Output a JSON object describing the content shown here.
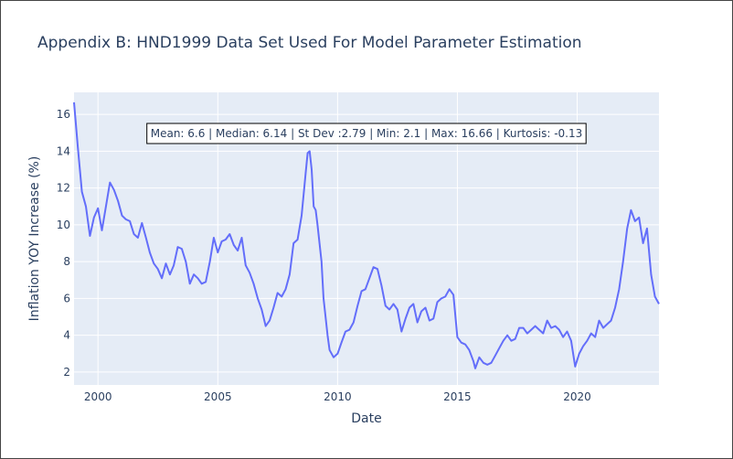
{
  "chart_data": {
    "type": "line",
    "title": "Appendix B: HND1999 Data Set Used For Model Parameter Estimation",
    "xlabel": "Date",
    "ylabel": "Inflation YOY Increase (%)",
    "xlim": [
      "1999-01-01",
      "2023-06-01"
    ],
    "ylim": [
      1.3,
      17.2
    ],
    "grid": true,
    "x_ticks": [
      {
        "value": "2000-01-01",
        "label": "2000"
      },
      {
        "value": "2005-01-01",
        "label": "2005"
      },
      {
        "value": "2010-01-01",
        "label": "2010"
      },
      {
        "value": "2015-01-01",
        "label": "2015"
      },
      {
        "value": "2020-01-01",
        "label": "2020"
      }
    ],
    "y_ticks": [
      {
        "value": 2,
        "label": "2"
      },
      {
        "value": 4,
        "label": "4"
      },
      {
        "value": 6,
        "label": "6"
      },
      {
        "value": 8,
        "label": "8"
      },
      {
        "value": 10,
        "label": "10"
      },
      {
        "value": 12,
        "label": "12"
      },
      {
        "value": 14,
        "label": "14"
      },
      {
        "value": 16,
        "label": "16"
      }
    ],
    "annotation": "Mean: 6.6 | Median: 6.14 | St Dev :2.79 | Min: 2.1 | Max: 16.66 | Kurtosis: -0.13",
    "series": [
      {
        "color": "#636efa",
        "points": [
          [
            "1999-01-01",
            16.66
          ],
          [
            "1999-03-01",
            14.2
          ],
          [
            "1999-05-01",
            11.8
          ],
          [
            "1999-07-01",
            11.0
          ],
          [
            "1999-09-01",
            9.4
          ],
          [
            "1999-11-01",
            10.4
          ],
          [
            "2000-01-01",
            10.9
          ],
          [
            "2000-03-01",
            9.7
          ],
          [
            "2000-05-01",
            11.0
          ],
          [
            "2000-07-01",
            12.3
          ],
          [
            "2000-09-01",
            11.9
          ],
          [
            "2000-11-01",
            11.3
          ],
          [
            "2001-01-01",
            10.5
          ],
          [
            "2001-03-01",
            10.3
          ],
          [
            "2001-05-01",
            10.2
          ],
          [
            "2001-07-01",
            9.5
          ],
          [
            "2001-09-01",
            9.3
          ],
          [
            "2001-11-01",
            10.1
          ],
          [
            "2002-01-01",
            9.3
          ],
          [
            "2002-03-01",
            8.5
          ],
          [
            "2002-05-01",
            7.9
          ],
          [
            "2002-07-01",
            7.6
          ],
          [
            "2002-09-01",
            7.1
          ],
          [
            "2002-11-01",
            7.9
          ],
          [
            "2003-01-01",
            7.3
          ],
          [
            "2003-03-01",
            7.8
          ],
          [
            "2003-05-01",
            8.8
          ],
          [
            "2003-07-01",
            8.7
          ],
          [
            "2003-09-01",
            8.0
          ],
          [
            "2003-11-01",
            6.8
          ],
          [
            "2004-01-01",
            7.3
          ],
          [
            "2004-03-01",
            7.1
          ],
          [
            "2004-05-01",
            6.8
          ],
          [
            "2004-07-01",
            6.9
          ],
          [
            "2004-09-01",
            8.0
          ],
          [
            "2004-11-01",
            9.3
          ],
          [
            "2005-01-01",
            8.5
          ],
          [
            "2005-03-01",
            9.1
          ],
          [
            "2005-05-01",
            9.2
          ],
          [
            "2005-07-01",
            9.5
          ],
          [
            "2005-09-01",
            8.9
          ],
          [
            "2005-11-01",
            8.6
          ],
          [
            "2006-01-01",
            9.3
          ],
          [
            "2006-03-01",
            7.8
          ],
          [
            "2006-05-01",
            7.4
          ],
          [
            "2006-07-01",
            6.8
          ],
          [
            "2006-09-01",
            6.0
          ],
          [
            "2006-11-01",
            5.4
          ],
          [
            "2007-01-01",
            4.5
          ],
          [
            "2007-03-01",
            4.8
          ],
          [
            "2007-05-01",
            5.5
          ],
          [
            "2007-07-01",
            6.3
          ],
          [
            "2007-09-01",
            6.1
          ],
          [
            "2007-11-01",
            6.5
          ],
          [
            "2008-01-01",
            7.3
          ],
          [
            "2008-03-01",
            9.0
          ],
          [
            "2008-05-01",
            9.2
          ],
          [
            "2008-07-01",
            10.5
          ],
          [
            "2008-09-01",
            12.8
          ],
          [
            "2008-10-01",
            13.9
          ],
          [
            "2008-11-01",
            14.0
          ],
          [
            "2008-12-01",
            13.0
          ],
          [
            "2009-01-01",
            11.0
          ],
          [
            "2009-02-01",
            10.8
          ],
          [
            "2009-03-01",
            10.0
          ],
          [
            "2009-05-01",
            8.0
          ],
          [
            "2009-06-01",
            6.0
          ],
          [
            "2009-08-01",
            4.0
          ],
          [
            "2009-09-01",
            3.2
          ],
          [
            "2009-11-01",
            2.8
          ],
          [
            "2010-01-01",
            3.0
          ],
          [
            "2010-03-01",
            3.6
          ],
          [
            "2010-05-01",
            4.2
          ],
          [
            "2010-07-01",
            4.3
          ],
          [
            "2010-09-01",
            4.7
          ],
          [
            "2010-11-01",
            5.6
          ],
          [
            "2011-01-01",
            6.4
          ],
          [
            "2011-03-01",
            6.5
          ],
          [
            "2011-05-01",
            7.1
          ],
          [
            "2011-07-01",
            7.7
          ],
          [
            "2011-09-01",
            7.6
          ],
          [
            "2011-11-01",
            6.7
          ],
          [
            "2012-01-01",
            5.6
          ],
          [
            "2012-03-01",
            5.4
          ],
          [
            "2012-05-01",
            5.7
          ],
          [
            "2012-07-01",
            5.4
          ],
          [
            "2012-09-01",
            4.2
          ],
          [
            "2012-11-01",
            4.9
          ],
          [
            "2013-01-01",
            5.5
          ],
          [
            "2013-03-01",
            5.7
          ],
          [
            "2013-05-01",
            4.7
          ],
          [
            "2013-07-01",
            5.3
          ],
          [
            "2013-09-01",
            5.5
          ],
          [
            "2013-11-01",
            4.8
          ],
          [
            "2014-01-01",
            4.9
          ],
          [
            "2014-03-01",
            5.8
          ],
          [
            "2014-05-01",
            6.0
          ],
          [
            "2014-07-01",
            6.1
          ],
          [
            "2014-09-01",
            6.5
          ],
          [
            "2014-11-01",
            6.2
          ],
          [
            "2015-01-01",
            3.9
          ],
          [
            "2015-03-01",
            3.6
          ],
          [
            "2015-05-01",
            3.5
          ],
          [
            "2015-07-01",
            3.2
          ],
          [
            "2015-09-01",
            2.6
          ],
          [
            "2015-10-01",
            2.2
          ],
          [
            "2015-12-01",
            2.8
          ],
          [
            "2016-02-01",
            2.5
          ],
          [
            "2016-04-01",
            2.4
          ],
          [
            "2016-06-01",
            2.5
          ],
          [
            "2016-08-01",
            2.9
          ],
          [
            "2016-10-01",
            3.3
          ],
          [
            "2016-12-01",
            3.7
          ],
          [
            "2017-02-01",
            4.0
          ],
          [
            "2017-04-01",
            3.7
          ],
          [
            "2017-06-01",
            3.8
          ],
          [
            "2017-08-01",
            4.4
          ],
          [
            "2017-10-01",
            4.4
          ],
          [
            "2017-12-01",
            4.1
          ],
          [
            "2018-02-01",
            4.3
          ],
          [
            "2018-04-01",
            4.5
          ],
          [
            "2018-06-01",
            4.3
          ],
          [
            "2018-08-01",
            4.1
          ],
          [
            "2018-10-01",
            4.8
          ],
          [
            "2018-12-01",
            4.4
          ],
          [
            "2019-02-01",
            4.5
          ],
          [
            "2019-04-01",
            4.3
          ],
          [
            "2019-06-01",
            3.9
          ],
          [
            "2019-08-01",
            4.2
          ],
          [
            "2019-10-01",
            3.7
          ],
          [
            "2019-12-01",
            2.3
          ],
          [
            "2020-02-01",
            3.0
          ],
          [
            "2020-04-01",
            3.4
          ],
          [
            "2020-06-01",
            3.7
          ],
          [
            "2020-08-01",
            4.1
          ],
          [
            "2020-10-01",
            3.9
          ],
          [
            "2020-12-01",
            4.8
          ],
          [
            "2021-02-01",
            4.4
          ],
          [
            "2021-04-01",
            4.6
          ],
          [
            "2021-06-01",
            4.8
          ],
          [
            "2021-08-01",
            5.5
          ],
          [
            "2021-10-01",
            6.5
          ],
          [
            "2021-12-01",
            8.0
          ],
          [
            "2022-02-01",
            9.8
          ],
          [
            "2022-04-01",
            10.8
          ],
          [
            "2022-06-01",
            10.2
          ],
          [
            "2022-08-01",
            10.4
          ],
          [
            "2022-10-01",
            9.0
          ],
          [
            "2022-12-01",
            9.8
          ],
          [
            "2023-02-01",
            7.3
          ],
          [
            "2023-04-01",
            6.1
          ],
          [
            "2023-06-01",
            5.7
          ]
        ]
      }
    ]
  }
}
